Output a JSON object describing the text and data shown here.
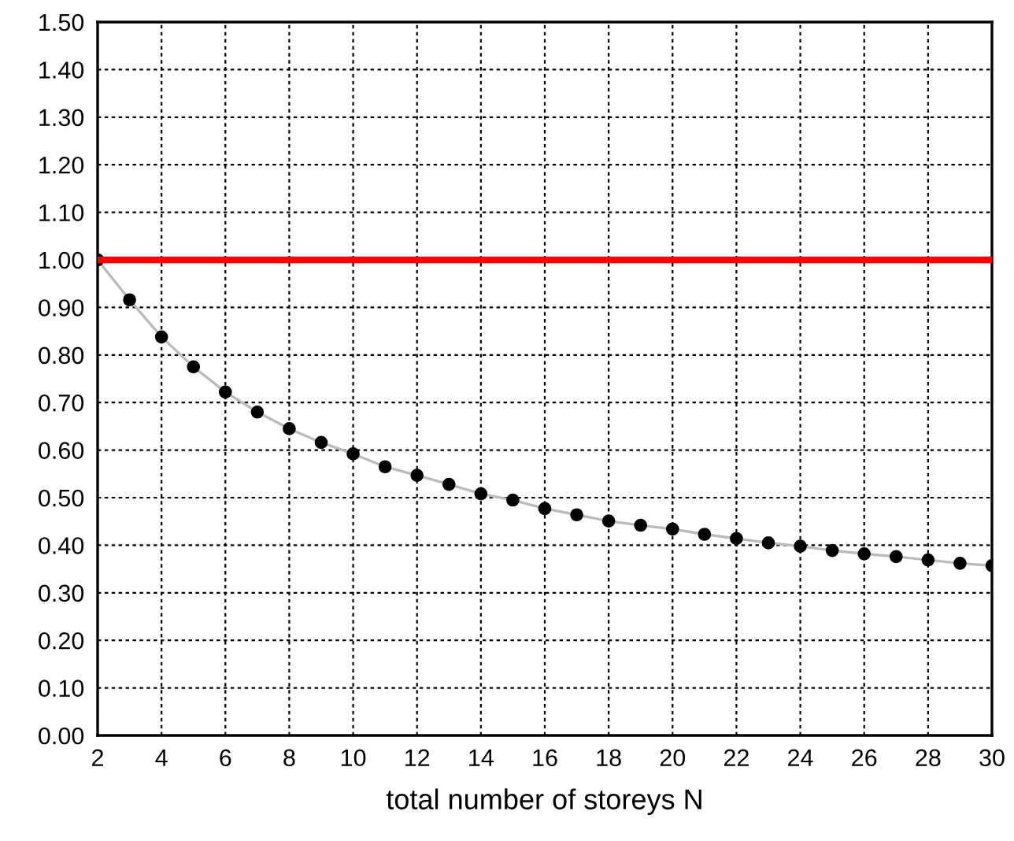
{
  "chart_data": {
    "type": "line",
    "xlabel": "total number of storeys N",
    "x": [
      2,
      3,
      4,
      5,
      6,
      7,
      8,
      9,
      10,
      11,
      12,
      13,
      14,
      15,
      16,
      17,
      18,
      19,
      20,
      21,
      22,
      23,
      24,
      25,
      26,
      27,
      28,
      29,
      30
    ],
    "series": [
      {
        "color": "#000000",
        "values": [
          1.0,
          0.916,
          0.838,
          0.775,
          0.722,
          0.68,
          0.645,
          0.616,
          0.592,
          0.565,
          0.547,
          0.528,
          0.508,
          0.495,
          0.477,
          0.464,
          0.451,
          0.442,
          0.434,
          0.423,
          0.414,
          0.405,
          0.398,
          0.389,
          0.382,
          0.376,
          0.369,
          0.362,
          0.357
        ]
      }
    ],
    "marker": "circle",
    "line_style": "solid",
    "grid": true,
    "xlim": [
      2,
      30
    ],
    "xticks": [
      2,
      4,
      6,
      8,
      10,
      12,
      14,
      16,
      18,
      20,
      22,
      24,
      26,
      28,
      30
    ],
    "ylim": [
      0,
      1.5
    ],
    "yticks": [
      {
        "value": 0,
        "label": "0.00"
      },
      {
        "value": 0.1,
        "label": "0.10"
      },
      {
        "value": 0.2,
        "label": "0.20"
      },
      {
        "value": 0.3,
        "label": "0.30"
      },
      {
        "value": 0.4,
        "label": "0.40"
      },
      {
        "value": 0.5,
        "label": "0.50"
      },
      {
        "value": 0.6,
        "label": "0.60"
      },
      {
        "value": 0.7,
        "label": "0.70"
      },
      {
        "value": 0.8,
        "label": "0.80"
      },
      {
        "value": 0.9,
        "label": "0.90"
      },
      {
        "value": 1.0,
        "label": "1.00"
      },
      {
        "value": 1.1,
        "label": "1.10"
      },
      {
        "value": 1.2,
        "label": "1.20"
      },
      {
        "value": 1.3,
        "label": "1.30"
      },
      {
        "value": 1.4,
        "label": "1.40"
      },
      {
        "value": 1.5,
        "label": "1.50"
      }
    ],
    "ref_lines": [
      {
        "axis": "y",
        "value": 1.0,
        "color": "#ff0000",
        "line_style": "solid"
      }
    ]
  }
}
